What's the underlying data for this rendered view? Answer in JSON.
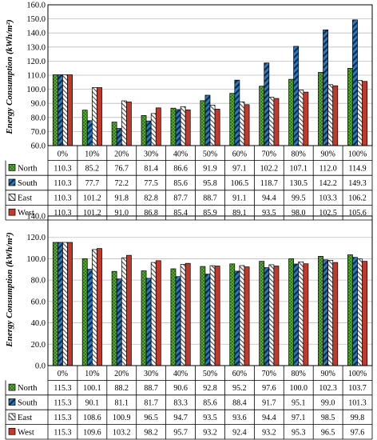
{
  "chart_data": [
    {
      "type": "bar",
      "ylabel": "Energy Consumption (kWh/m²)",
      "ylim": [
        60,
        160
      ],
      "yticks": [
        "60.0",
        "70.0",
        "80.0",
        "90.0",
        "100.0",
        "110.0",
        "120.0",
        "130.0",
        "140.0",
        "150.0",
        "160.0"
      ],
      "grid": true,
      "legend": "data-table",
      "categories": [
        "0%",
        "10%",
        "20%",
        "30%",
        "40%",
        "50%",
        "60%",
        "70%",
        "80%",
        "90%",
        "100%"
      ],
      "series": [
        {
          "name": "North",
          "color": "#5aa832",
          "pattern": "checker",
          "values": [
            110.3,
            85.2,
            76.7,
            81.4,
            86.6,
            91.9,
            97.1,
            102.2,
            107.1,
            112.0,
            114.9
          ],
          "labels": [
            "110.3",
            "85.2",
            "76.7",
            "81.4",
            "86.6",
            "91.9",
            "97.1",
            "102.2",
            "107.1",
            "112.0",
            "114.9"
          ]
        },
        {
          "name": "South",
          "color": "#2e7bbf",
          "pattern": "diagonal",
          "values": [
            110.3,
            77.7,
            72.2,
            77.5,
            85.6,
            95.8,
            106.5,
            118.7,
            130.5,
            142.2,
            149.3
          ],
          "labels": [
            "110.3",
            "77.7",
            "72.2",
            "77.5",
            "85.6",
            "95.8",
            "106.5",
            "118.7",
            "130.5",
            "142.2",
            "149.3"
          ]
        },
        {
          "name": "East",
          "color": "#ffffff",
          "pattern": "hatch",
          "values": [
            110.3,
            101.2,
            91.8,
            82.8,
            87.7,
            88.7,
            91.1,
            94.4,
            99.5,
            103.3,
            106.2
          ],
          "labels": [
            "110.3",
            "101.2",
            "91.8",
            "82.8",
            "87.7",
            "88.7",
            "91.1",
            "94.4",
            "99.5",
            "103.3",
            "106.2"
          ]
        },
        {
          "name": "West",
          "color": "#c0392b",
          "pattern": "solid",
          "values": [
            110.3,
            101.2,
            91.0,
            86.8,
            85.4,
            85.9,
            89.1,
            93.5,
            98.0,
            102.5,
            105.6
          ],
          "labels": [
            "110.3",
            "101.2",
            "91.0",
            "86.8",
            "85.4",
            "85.9",
            "89.1",
            "93.5",
            "98.0",
            "102.5",
            "105.6"
          ]
        }
      ]
    },
    {
      "type": "bar",
      "ylabel": "Energy Consumption (kWh/m²)",
      "ylim": [
        0,
        140
      ],
      "yticks": [
        "0.0",
        "20.0",
        "40.0",
        "60.0",
        "80.0",
        "100.0",
        "120.0",
        "140.0"
      ],
      "grid": true,
      "legend": "data-table",
      "categories": [
        "0%",
        "10%",
        "20%",
        "30%",
        "40%",
        "50%",
        "60%",
        "70%",
        "80%",
        "90%",
        "100%"
      ],
      "series": [
        {
          "name": "North",
          "color": "#5aa832",
          "pattern": "checker",
          "values": [
            115.3,
            100.1,
            88.2,
            88.7,
            90.6,
            92.8,
            95.2,
            97.6,
            100.0,
            102.3,
            103.7
          ],
          "labels": [
            "115.3",
            "100.1",
            "88.2",
            "88.7",
            "90.6",
            "92.8",
            "95.2",
            "97.6",
            "100.0",
            "102.3",
            "103.7"
          ]
        },
        {
          "name": "South",
          "color": "#2e7bbf",
          "pattern": "diagonal",
          "values": [
            115.3,
            90.1,
            81.1,
            81.7,
            83.3,
            85.6,
            88.4,
            91.7,
            95.1,
            99.0,
            101.3
          ],
          "labels": [
            "115.3",
            "90.1",
            "81.1",
            "81.7",
            "83.3",
            "85.6",
            "88.4",
            "91.7",
            "95.1",
            "99.0",
            "101.3"
          ]
        },
        {
          "name": "East",
          "color": "#ffffff",
          "pattern": "hatch",
          "values": [
            115.3,
            108.6,
            100.9,
            96.5,
            94.7,
            93.5,
            93.6,
            94.4,
            97.1,
            98.5,
            99.8
          ],
          "labels": [
            "115.3",
            "108.6",
            "100.9",
            "96.5",
            "94.7",
            "93.5",
            "93.6",
            "94.4",
            "97.1",
            "98.5",
            "99.8"
          ]
        },
        {
          "name": "West",
          "color": "#c0392b",
          "pattern": "solid",
          "values": [
            115.3,
            109.6,
            103.2,
            98.2,
            95.7,
            93.2,
            92.4,
            93.2,
            95.3,
            96.5,
            97.6
          ],
          "labels": [
            "115.3",
            "109.6",
            "103.2",
            "98.2",
            "95.7",
            "93.2",
            "92.4",
            "93.2",
            "95.3",
            "96.5",
            "97.6"
          ]
        }
      ]
    }
  ]
}
